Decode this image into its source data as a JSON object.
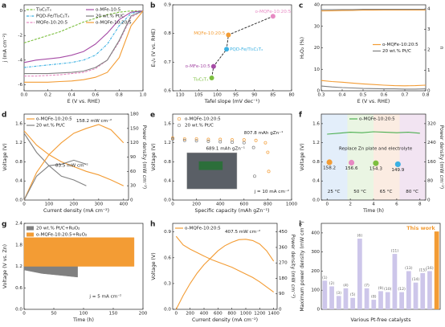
{
  "chart_data": [
    {
      "type": "line",
      "panel": "a",
      "xlabel": "E (V vs. RHE)",
      "ylabel": "j (mA cm⁻²)",
      "xlim": [
        0,
        1
      ],
      "xticks": [
        {
          "value": 0,
          "label": "0.0"
        },
        0.2,
        0.4,
        0.6,
        0.8,
        {
          "value": 1,
          "label": "1.0"
        }
      ],
      "ylim": [
        -6.5,
        0.5
      ],
      "yticks": [
        -6,
        -4,
        -2,
        0
      ],
      "legend": "upper left",
      "series": [
        {
          "name": "Ti₃C₂Tₓ",
          "color": "#7cbf3f",
          "dash": "dashed",
          "x": [
            0,
            0.1,
            0.2,
            0.3,
            0.4,
            0.5,
            0.6,
            0.7,
            0.8,
            0.9,
            1.0
          ],
          "values": [
            -2.6,
            -2.3,
            -2.0,
            -1.7,
            -1.3,
            -0.9,
            -0.6,
            -0.3,
            -0.1,
            0,
            0
          ]
        },
        {
          "name": "PQD-Fe/Ti₃C₂Tₓ",
          "color": "#3ab0e2",
          "dash": "dashdot",
          "x": [
            0,
            0.1,
            0.2,
            0.3,
            0.4,
            0.5,
            0.6,
            0.7,
            0.8,
            0.9,
            1.0
          ],
          "values": [
            -4.6,
            -4.5,
            -4.4,
            -4.3,
            -4.2,
            -4.0,
            -3.6,
            -2.7,
            -1.2,
            -0.2,
            0
          ]
        },
        {
          "name": "MQFe-10:20:5",
          "color": "#e78ac3",
          "dash": "dashed",
          "x": [
            0,
            0.1,
            0.2,
            0.3,
            0.4,
            0.5,
            0.6,
            0.7,
            0.8,
            0.9,
            1.0
          ],
          "values": [
            -5.3,
            -5.3,
            -5.25,
            -5.2,
            -5.1,
            -5.0,
            -4.7,
            -4.0,
            -2.5,
            -0.5,
            0
          ]
        },
        {
          "name": "o-MFe-10:5",
          "color": "#a64ca6",
          "x": [
            0,
            0.1,
            0.2,
            0.3,
            0.4,
            0.5,
            0.6,
            0.7,
            0.8,
            0.9,
            1.0
          ],
          "values": [
            -4.2,
            -4.0,
            -3.9,
            -3.8,
            -3.6,
            -3.3,
            -2.7,
            -1.8,
            -0.7,
            -0.1,
            0
          ]
        },
        {
          "name": "20 wt.% Pt/C",
          "color": "#808080",
          "x": [
            0,
            0.1,
            0.2,
            0.3,
            0.4,
            0.5,
            0.6,
            0.7,
            0.8,
            0.9,
            1.0
          ],
          "values": [
            -5.1,
            -5.1,
            -5.1,
            -5.05,
            -5.0,
            -4.9,
            -4.6,
            -4.0,
            -2.4,
            -0.4,
            0
          ]
        },
        {
          "name": "o-MQFe-10:20:5",
          "color": "#f39c34",
          "x": [
            0,
            0.1,
            0.2,
            0.3,
            0.4,
            0.5,
            0.6,
            0.7,
            0.8,
            0.9,
            1.0
          ],
          "values": [
            -5.8,
            -5.8,
            -5.8,
            -5.75,
            -5.7,
            -5.6,
            -5.4,
            -5.0,
            -3.8,
            -1.2,
            0
          ]
        }
      ]
    },
    {
      "type": "scatter",
      "panel": "b",
      "xlabel": "Tafel slope (mV dec⁻¹)",
      "ylabel": "E₁/₂ (V vs. RHE)",
      "xlim": [
        112,
        80
      ],
      "xticks": [
        110,
        105,
        100,
        95,
        90,
        85,
        80
      ],
      "ylim": [
        0.6,
        0.9
      ],
      "yticks": [
        0.6,
        0.7,
        0.8,
        0.9
      ],
      "trend": "dashed",
      "series": [
        {
          "name": "Ti₃C₂Tₓ",
          "color": "#7cbf3f",
          "x": [
            101.5
          ],
          "values": [
            0.645
          ]
        },
        {
          "name": "o-MFe-10:5",
          "color": "#a64ca6",
          "x": [
            101
          ],
          "values": [
            0.685
          ]
        },
        {
          "name": "PQD-Fe/Ti₃C₂Tₓ",
          "color": "#3ab0e2",
          "x": [
            97.5
          ],
          "values": [
            0.745
          ]
        },
        {
          "name": "MQFe-10:20:5",
          "color": "#f39c34",
          "x": [
            97
          ],
          "values": [
            0.795
          ]
        },
        {
          "name": "o-MQFe-10:20:5",
          "color": "#e78ac3",
          "x": [
            85
          ],
          "values": [
            0.86
          ]
        }
      ]
    },
    {
      "type": "line",
      "panel": "c",
      "xlabel": "E (V vs. RHE)",
      "ylabel": "H₂O₂ (%)",
      "y2label": "n",
      "xlim": [
        0.3,
        0.8
      ],
      "xticks": [
        0.3,
        0.4,
        0.5,
        0.6,
        0.7,
        0.8
      ],
      "ylim": [
        0,
        40
      ],
      "yticks": [
        0,
        10,
        20,
        30,
        40
      ],
      "y2lim": [
        0,
        4.2
      ],
      "y2ticks": [
        0,
        1,
        2,
        3,
        4
      ],
      "legend": "center right",
      "series": [
        {
          "name": "o-MQFe-10:20:5",
          "color": "#f39c34",
          "x": [
            0.3,
            0.35,
            0.4,
            0.45,
            0.5,
            0.55,
            0.6,
            0.65,
            0.7,
            0.75,
            0.8
          ],
          "values": [
            4.8,
            4.3,
            4.0,
            3.6,
            3.2,
            2.9,
            2.6,
            2.4,
            2.3,
            2.4,
            2.6
          ]
        },
        {
          "name": "20 wt.% Pt/C",
          "color": "#808080",
          "x": [
            0.3,
            0.35,
            0.4,
            0.45,
            0.5,
            0.55,
            0.6,
            0.65,
            0.7,
            0.75,
            0.8
          ],
          "values": [
            2.2,
            1.8,
            1.5,
            1.3,
            1.1,
            1.0,
            0.9,
            0.9,
            0.8,
            0.8,
            0.9
          ]
        },
        {
          "color": "#f39c34",
          "axis": "y2",
          "x": [
            0.3,
            0.35,
            0.4,
            0.45,
            0.5,
            0.55,
            0.6,
            0.65,
            0.7,
            0.75,
            0.8
          ],
          "values": [
            3.9,
            3.91,
            3.92,
            3.93,
            3.94,
            3.94,
            3.95,
            3.95,
            3.95,
            3.95,
            3.95
          ]
        },
        {
          "color": "#808080",
          "axis": "y2",
          "x": [
            0.3,
            0.35,
            0.4,
            0.45,
            0.5,
            0.55,
            0.6,
            0.65,
            0.7,
            0.75,
            0.8
          ],
          "values": [
            3.96,
            3.96,
            3.97,
            3.97,
            3.98,
            3.98,
            3.98,
            3.98,
            3.98,
            3.98,
            3.98
          ]
        }
      ]
    },
    {
      "type": "line",
      "panel": "d",
      "xlabel": "Current density (mA cm⁻²)",
      "ylabel": "Voltage (V)",
      "y2label": "Power density (mW cm⁻²)",
      "xlim": [
        0,
        420
      ],
      "xticks": [
        0,
        100,
        200,
        300,
        400
      ],
      "ylim": [
        0,
        1.8
      ],
      "yticks": [
        {
          "value": 0,
          "label": "0.0"
        },
        0.4,
        0.8,
        1.2,
        1.6
      ],
      "y2lim": [
        0,
        180
      ],
      "y2ticks": [
        0,
        30,
        60,
        90,
        120,
        150,
        180
      ],
      "legend": "upper left",
      "annotations": [
        "158.2 mW cm⁻²",
        "83.5 mW cm⁻²"
      ],
      "series": [
        {
          "name": "o-MQFe-10:20:5",
          "color": "#f39c34",
          "x": [
            0,
            50,
            100,
            150,
            200,
            250,
            300,
            350,
            400
          ],
          "values": [
            1.45,
            1.15,
            0.95,
            0.8,
            0.7,
            0.6,
            0.527,
            0.42,
            0.3
          ]
        },
        {
          "name": "20 wt.% Pt/C",
          "color": "#808080",
          "x": [
            0,
            50,
            100,
            150,
            200,
            250
          ],
          "values": [
            1.4,
            1.0,
            0.72,
            0.5,
            0.42,
            0.3
          ]
        },
        {
          "color": "#f39c34",
          "axis": "y2",
          "x": [
            0,
            50,
            100,
            150,
            200,
            250,
            300,
            350,
            400
          ],
          "values": [
            0,
            57.5,
            95,
            120,
            140,
            150,
            158.2,
            147,
            120
          ]
        },
        {
          "color": "#808080",
          "axis": "y2",
          "x": [
            0,
            50,
            100,
            150,
            200,
            250
          ],
          "values": [
            0,
            50,
            72,
            75,
            83.5,
            75
          ]
        }
      ]
    },
    {
      "type": "line",
      "panel": "e",
      "xlabel": "Specific capacity (mAh gZn⁻¹)",
      "ylabel": "Voltage (V)",
      "xlim": [
        0,
        1000
      ],
      "xticks": [
        0,
        200,
        400,
        600,
        800,
        1000
      ],
      "ylim": [
        0,
        1.8
      ],
      "yticks": [
        {
          "value": 0,
          "label": "0.0"
        },
        0.4,
        0.8,
        1.2,
        1.6
      ],
      "legend": "upper left",
      "annotations": [
        "807.8 mAh gZn⁻¹",
        "689.1 mAh gZn⁻¹",
        "j = 10 mA cm⁻²"
      ],
      "series": [
        {
          "name": "o-MQFe-10:20:5",
          "color": "#f39c34",
          "marker": "o",
          "x": [
            0,
            100,
            200,
            300,
            400,
            500,
            600,
            700,
            780,
            800,
            807.8
          ],
          "values": [
            1.3,
            1.28,
            1.28,
            1.27,
            1.27,
            1.26,
            1.26,
            1.25,
            1.2,
            1.0,
            0.6
          ]
        },
        {
          "name": "20 wt.% Pt/C",
          "color": "#808080",
          "marker": "o",
          "x": [
            0,
            100,
            200,
            300,
            400,
            500,
            600,
            680,
            689.1
          ],
          "values": [
            1.28,
            1.25,
            1.24,
            1.23,
            1.22,
            1.21,
            1.2,
            1.1,
            0.5
          ]
        }
      ]
    },
    {
      "type": "line",
      "panel": "f",
      "xlabel": "Time (h)",
      "ylabel": "Voltage (V)",
      "y2label": "Power density (mW cm⁻²)",
      "xlim": [
        -0.5,
        8.5
      ],
      "xticks": [
        0,
        2,
        4,
        6,
        8
      ],
      "ylim": [
        0,
        1.8
      ],
      "yticks": [
        {
          "value": 0,
          "label": "0.0"
        },
        0.4,
        0.8,
        1.2,
        1.6
      ],
      "y2lim": [
        0,
        360
      ],
      "y2ticks": [
        0,
        80,
        160,
        240,
        320
      ],
      "legend": "upper center",
      "annotations": [
        "Replace Zn plate and electrolyte",
        "25 °C",
        "50 °C",
        "65 °C",
        "80 °C"
      ],
      "series": [
        {
          "name": "o-MQFe-10:20:5",
          "color": "#4caf50",
          "x": [
            0,
            1,
            2,
            3,
            4,
            5,
            6,
            7,
            8
          ],
          "values": [
            1.38,
            1.4,
            1.42,
            1.41,
            1.43,
            1.42,
            1.41,
            1.42,
            1.4
          ]
        },
        {
          "axis": "y2",
          "marker": "ball",
          "point_labels": true,
          "colors": [
            "#f39c34",
            "#e78ac3",
            "#7cbf3f",
            "#3ab0e2"
          ],
          "x": [
            0.2,
            2.1,
            4.2,
            6.1
          ],
          "values": [
            158.2,
            156.6,
            154.3,
            149.9
          ]
        }
      ]
    },
    {
      "type": "range_area",
      "panel": "g",
      "xlabel": "Time (h)",
      "ylabel": "Voltage (V vs. Zn)",
      "xlim": [
        0,
        200
      ],
      "xticks": [
        0,
        50,
        100,
        150,
        200
      ],
      "ylim": [
        0,
        2.4
      ],
      "yticks": [
        {
          "value": 0,
          "label": "0.0"
        },
        0.6,
        1.2,
        1.8,
        2.4
      ],
      "legend": "upper left",
      "annotations": [
        "j = 5 mA cm⁻²"
      ],
      "series": [
        {
          "name": "20 wt.% Pt/C+RuO₂",
          "color": "#808080",
          "x": [
            0,
            30,
            60,
            90
          ],
          "charge": [
            1.4,
            1.35,
            1.3,
            1.25
          ],
          "discharge": [
            1.1,
            1.0,
            0.95,
            0.9
          ]
        },
        {
          "name": "o-MQFe-10:20:5+RuO₂",
          "color": "#f39c34",
          "x": [
            0,
            50,
            100,
            150,
            185
          ],
          "charge": [
            2.0,
            2.0,
            2.0,
            2.0,
            2.0
          ],
          "discharge": [
            1.2,
            1.2,
            1.2,
            1.2,
            1.2
          ]
        }
      ]
    },
    {
      "type": "line",
      "panel": "h",
      "xlabel": "Current density (mA cm⁻²)",
      "ylabel": "Voltage (V)",
      "y2label": "Power density (mW cm⁻²)",
      "xlim": [
        -50,
        1450
      ],
      "xticks": [
        0,
        200,
        400,
        600,
        800,
        1000,
        1200,
        1400
      ],
      "ylim": [
        0,
        1.0
      ],
      "yticks": [
        {
          "value": 0,
          "label": "0.0"
        },
        0.3,
        0.6,
        0.9
      ],
      "y2lim": [
        0,
        500
      ],
      "y2ticks": [
        0,
        90,
        180,
        270,
        360,
        450
      ],
      "legend": "upper left",
      "annotations": [
        "407.5 mW cm⁻²"
      ],
      "series": [
        {
          "name": "o-MQFe-10:20:5",
          "color": "#f39c34",
          "x": [
            0,
            100,
            200,
            300,
            400,
            500,
            600,
            700,
            800,
            900,
            1000,
            1100,
            1200,
            1300,
            1400
          ],
          "values": [
            0.85,
            0.75,
            0.7,
            0.66,
            0.62,
            0.58,
            0.55,
            0.52,
            0.49,
            0.45,
            0.41,
            0.37,
            0.32,
            0.26,
            0.2
          ]
        },
        {
          "color": "#f39c34",
          "axis": "y2",
          "x": [
            0,
            100,
            200,
            300,
            400,
            500,
            600,
            700,
            800,
            900,
            1000,
            1100,
            1200,
            1300,
            1400
          ],
          "values": [
            0,
            80,
            150,
            210,
            260,
            300,
            340,
            370,
            390,
            405,
            407.5,
            400,
            380,
            340,
            280
          ]
        }
      ]
    },
    {
      "type": "bar",
      "panel": "i",
      "xlabel": "Various Pt-free catalysts",
      "ylabel": "Maximum power density (mW cm⁻²)",
      "ylim": [
        0,
        450
      ],
      "yticks": [
        0,
        100,
        200,
        300,
        400
      ],
      "categories": [
        "(1)",
        "(2)",
        "(3)",
        "(4)",
        "(5)",
        "(6)",
        "(7)",
        "(8)",
        "(9)",
        "(10)",
        "(11)",
        "(12)",
        "(13)",
        "(14)",
        "(15)",
        "(16)",
        "This work"
      ],
      "values": [
        150,
        120,
        70,
        110,
        60,
        370,
        110,
        50,
        95,
        90,
        290,
        90,
        200,
        140,
        190,
        200,
        407.5
      ],
      "colors": [
        "#cdc6ea",
        "#cdc6ea",
        "#cdc6ea",
        "#cdc6ea",
        "#cdc6ea",
        "#cdc6ea",
        "#cdc6ea",
        "#cdc6ea",
        "#cdc6ea",
        "#cdc6ea",
        "#cdc6ea",
        "#cdc6ea",
        "#cdc6ea",
        "#cdc6ea",
        "#cdc6ea",
        "#cdc6ea",
        "#f39c34"
      ]
    }
  ]
}
